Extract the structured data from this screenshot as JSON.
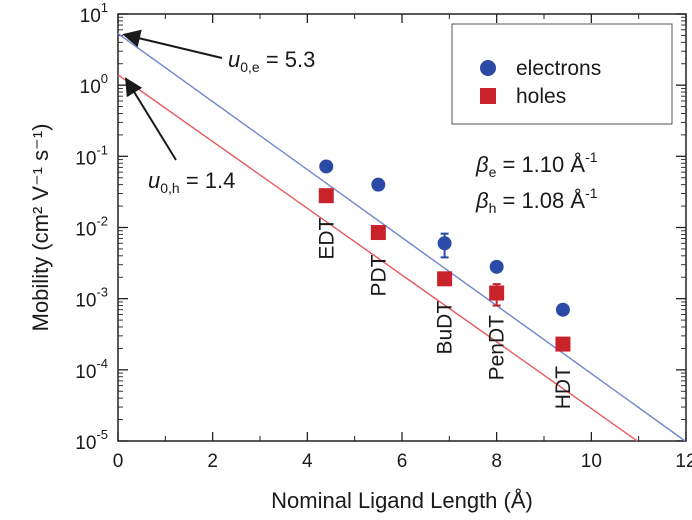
{
  "chart_data": {
    "type": "scatter",
    "xlabel": "Nominal Ligand Length (Å)",
    "ylabel": "Mobility (cm² V⁻¹ s⁻¹)",
    "xlim": [
      0,
      12
    ],
    "ylim_log10": [
      -5,
      1
    ],
    "log_y": true,
    "x_ticks": [
      0,
      2,
      4,
      6,
      8,
      10,
      12
    ],
    "y_tick_exponents": [
      1,
      0,
      -1,
      -2,
      -3,
      -4,
      -5
    ],
    "grid": false,
    "legend_position": "top-right",
    "series": [
      {
        "name": "electrons",
        "marker": "circle",
        "color": "#2b4aa6",
        "line_color": "#6f86cf",
        "points": [
          {
            "x": 4.4,
            "y": 0.072
          },
          {
            "x": 5.5,
            "y": 0.04
          },
          {
            "x": 6.9,
            "y": 0.006,
            "err": 0.0022
          },
          {
            "x": 8.0,
            "y": 0.0028
          },
          {
            "x": 9.4,
            "y": 0.0007
          }
        ],
        "fit": {
          "u0": 5.3,
          "beta": 1.1
        }
      },
      {
        "name": "holes",
        "marker": "square",
        "color": "#c8222a",
        "line_color": "#e8585a",
        "points": [
          {
            "x": 4.4,
            "y": 0.028
          },
          {
            "x": 5.5,
            "y": 0.0085
          },
          {
            "x": 6.9,
            "y": 0.0019
          },
          {
            "x": 8.0,
            "y": 0.0012,
            "err": 0.0004
          },
          {
            "x": 9.4,
            "y": 0.00023
          }
        ],
        "fit": {
          "u0": 1.4,
          "beta": 1.08
        }
      }
    ],
    "ligand_labels": [
      {
        "text": "EDT",
        "x": 4.4
      },
      {
        "text": "PDT",
        "x": 5.5
      },
      {
        "text": "BuDT",
        "x": 6.9
      },
      {
        "text": "PenDT",
        "x": 8.0
      },
      {
        "text": "HDT",
        "x": 9.4
      }
    ],
    "annotations": {
      "u0_e": {
        "symbol": "u",
        "sub": "0,e",
        "value": "= 5.3"
      },
      "u0_h": {
        "symbol": "u",
        "sub": "0,h",
        "value": "= 1.4"
      },
      "beta_e": {
        "symbol": "β",
        "sub": "e",
        "value": "= 1.10 Å",
        "sup": "-1"
      },
      "beta_h": {
        "symbol": "β",
        "sub": "h",
        "value": "= 1.08 Å",
        "sup": "-1"
      }
    }
  }
}
